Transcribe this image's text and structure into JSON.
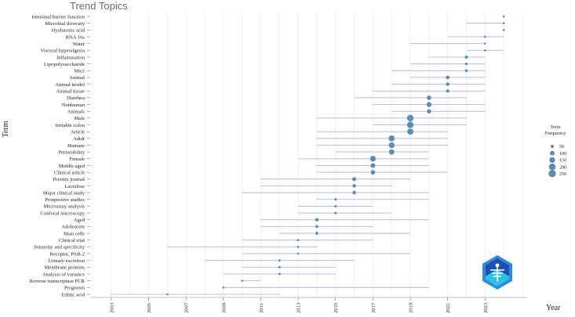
{
  "chart_data": {
    "type": "scatter",
    "title": "Trend Topics",
    "xlabel": "Year",
    "ylabel": "Term",
    "xlim": [
      2002,
      2025
    ],
    "x_ticks": [
      "2003",
      "2005",
      "2007",
      "2009",
      "2011",
      "2013",
      "2015",
      "2017",
      "2019",
      "2021",
      "2023"
    ],
    "grid": "vertical",
    "legend": {
      "title_lines": [
        "Term",
        "Frequency"
      ],
      "position": "right",
      "entries": [
        {
          "label": "50",
          "value": 50
        },
        {
          "label": "100",
          "value": 100
        },
        {
          "label": "150",
          "value": 150
        },
        {
          "label": "200",
          "value": 200
        },
        {
          "label": "250",
          "value": 250
        }
      ]
    },
    "colors": {
      "point": "#5b8db8",
      "range": "#b4bce0",
      "grid": "#e6e6e6"
    },
    "terms": [
      {
        "term": "Intestinal barrier function",
        "x_start": 2024,
        "x_mid": 2024,
        "x_end": 2024,
        "freq": 15
      },
      {
        "term": "Microbial diversity",
        "x_start": 2022,
        "x_mid": 2024,
        "x_end": 2024,
        "freq": 15
      },
      {
        "term": "Hyaluronic acid",
        "x_start": 2024,
        "x_mid": 2024,
        "x_end": 2024,
        "freq": 12
      },
      {
        "term": "RNA 16s",
        "x_start": 2021,
        "x_mid": 2023,
        "x_end": 2024,
        "freq": 20
      },
      {
        "term": "Water",
        "x_start": 2019,
        "x_mid": 2023,
        "x_end": 2023,
        "freq": 18
      },
      {
        "term": "Visceral hyperalgesia",
        "x_start": 2022,
        "x_mid": 2023,
        "x_end": 2024,
        "freq": 15
      },
      {
        "term": "Inflammation",
        "x_start": 2020,
        "x_mid": 2022,
        "x_end": 2023,
        "freq": 45
      },
      {
        "term": "Lipopolysaccharide",
        "x_start": 2019,
        "x_mid": 2022,
        "x_end": 2023,
        "freq": 30
      },
      {
        "term": "Mice",
        "x_start": 2018,
        "x_mid": 2022,
        "x_end": 2023,
        "freq": 35
      },
      {
        "term": "Animal",
        "x_start": 2019,
        "x_mid": 2021,
        "x_end": 2023,
        "freq": 60
      },
      {
        "term": "Animal model",
        "x_start": 2018,
        "x_mid": 2021,
        "x_end": 2023,
        "freq": 55
      },
      {
        "term": "Animal tissue",
        "x_start": 2017,
        "x_mid": 2021,
        "x_end": 2023,
        "freq": 50
      },
      {
        "term": "Diarrhea",
        "x_start": 2016,
        "x_mid": 2020,
        "x_end": 2022,
        "freq": 90
      },
      {
        "term": "Nonhuman",
        "x_start": 2017,
        "x_mid": 2020,
        "x_end": 2023,
        "freq": 110
      },
      {
        "term": "Animals",
        "x_start": 2018,
        "x_mid": 2020,
        "x_end": 2023,
        "freq": 80
      },
      {
        "term": "Male",
        "x_start": 2014,
        "x_mid": 2019,
        "x_end": 2022,
        "freq": 200
      },
      {
        "term": "Irritable colon",
        "x_start": 2017,
        "x_mid": 2019,
        "x_end": 2022,
        "freq": 190
      },
      {
        "term": "Article",
        "x_start": 2014,
        "x_mid": 2019,
        "x_end": 2021,
        "freq": 170
      },
      {
        "term": "Adult",
        "x_start": 2014,
        "x_mid": 2018,
        "x_end": 2021,
        "freq": 160
      },
      {
        "term": "Humans",
        "x_start": 2014,
        "x_mid": 2018,
        "x_end": 2021,
        "freq": 150
      },
      {
        "term": "Permeability",
        "x_start": 2015,
        "x_mid": 2018,
        "x_end": 2020,
        "freq": 130
      },
      {
        "term": "Female",
        "x_start": 2013,
        "x_mid": 2017,
        "x_end": 2020,
        "freq": 150
      },
      {
        "term": "Middle aged",
        "x_start": 2014,
        "x_mid": 2017,
        "x_end": 2020,
        "freq": 100
      },
      {
        "term": "Clinical article",
        "x_start": 2014,
        "x_mid": 2017,
        "x_end": 2021,
        "freq": 90
      },
      {
        "term": "Priority journal",
        "x_start": 2011,
        "x_mid": 2016,
        "x_end": 2019,
        "freq": 70
      },
      {
        "term": "Lactulose",
        "x_start": 2011,
        "x_mid": 2016,
        "x_end": 2018,
        "freq": 55
      },
      {
        "term": "Major clinical study",
        "x_start": 2010,
        "x_mid": 2016,
        "x_end": 2020,
        "freq": 60
      },
      {
        "term": "Prospective studies",
        "x_start": 2014,
        "x_mid": 2015,
        "x_end": 2020,
        "freq": 25
      },
      {
        "term": "Microarray analysis",
        "x_start": 2013,
        "x_mid": 2015,
        "x_end": 2017,
        "freq": 25
      },
      {
        "term": "Confocal microscopy",
        "x_start": 2013,
        "x_mid": 2015,
        "x_end": 2018,
        "freq": 25
      },
      {
        "term": "Aged",
        "x_start": 2011,
        "x_mid": 2014,
        "x_end": 2020,
        "freq": 50
      },
      {
        "term": "Adolescent",
        "x_start": 2011,
        "x_mid": 2014,
        "x_end": 2017,
        "freq": 40
      },
      {
        "term": "Mast cells",
        "x_start": 2012,
        "x_mid": 2014,
        "x_end": 2019,
        "freq": 40
      },
      {
        "term": "Clinical trial",
        "x_start": 2010,
        "x_mid": 2013,
        "x_end": 2017,
        "freq": 25
      },
      {
        "term": "Sensivity and specificity",
        "x_start": 2006,
        "x_mid": 2013,
        "x_end": 2014,
        "freq": 20
      },
      {
        "term": "Receptor, PAR-2",
        "x_start": 2010,
        "x_mid": 2013,
        "x_end": 2019,
        "freq": 20
      },
      {
        "term": "Urinary excretion",
        "x_start": 2008,
        "x_mid": 2012,
        "x_end": 2016,
        "freq": 25
      },
      {
        "term": "Membrane proteins",
        "x_start": 2010,
        "x_mid": 2012,
        "x_end": 2015,
        "freq": 25
      },
      {
        "term": "Analysis of variance",
        "x_start": 2009,
        "x_mid": 2012,
        "x_end": 2015,
        "freq": 25
      },
      {
        "term": "Reverse transcriptase PCR",
        "x_start": 2010,
        "x_mid": 2010,
        "x_end": 2011,
        "freq": 15
      },
      {
        "term": "Prognosis",
        "x_start": 2009,
        "x_mid": 2009,
        "x_end": 2020,
        "freq": 15
      },
      {
        "term": "Edetic acid",
        "x_start": 2003,
        "x_mid": 2006,
        "x_end": 2012,
        "freq": 15
      }
    ]
  }
}
